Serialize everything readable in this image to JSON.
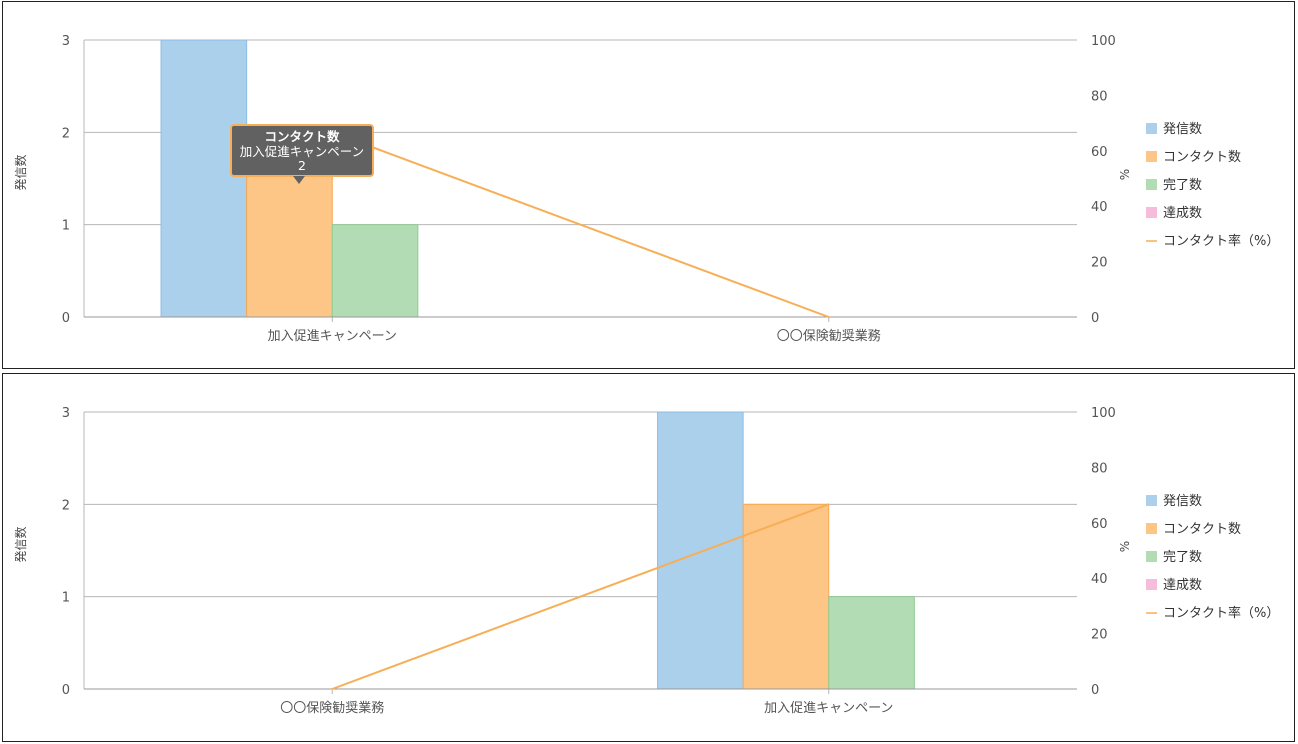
{
  "colors": {
    "sent": "#abd0ec",
    "sent_stroke": "#8dbde4",
    "contact": "#fdc586",
    "contact_stroke": "#f8a94f",
    "completed": "#b2dcb3",
    "completed_stroke": "#8fcb91",
    "achieved": "#f6bcd9",
    "achieved_stroke": "#e79ec3",
    "rate_line": "#f7ae56",
    "grid": "#b7b7b7",
    "axis_text": "#555555",
    "tooltip_bg": "#616161",
    "tooltip_border": "#f7ae56"
  },
  "chart_data": [
    {
      "type": "bar",
      "categories": [
        "加入促進キャンペーン",
        "〇〇保険勧奨業務"
      ],
      "series": [
        {
          "name": "発信数",
          "type": "bar",
          "axis": "left",
          "values": [
            3,
            0
          ]
        },
        {
          "name": "コンタクト数",
          "type": "bar",
          "axis": "left",
          "values": [
            2,
            0
          ]
        },
        {
          "name": "完了数",
          "type": "bar",
          "axis": "left",
          "values": [
            1,
            0
          ]
        },
        {
          "name": "達成数",
          "type": "bar",
          "axis": "left",
          "values": [
            0,
            0
          ]
        },
        {
          "name": "コンタクト率（%）",
          "type": "line",
          "axis": "right",
          "values": [
            66.7,
            0
          ]
        }
      ],
      "ylabel": "発信数",
      "y2label": "%",
      "ylim": [
        0,
        3
      ],
      "y2lim": [
        0,
        100
      ],
      "yticks": [
        "0",
        "1",
        "2",
        "3"
      ],
      "y2ticks": [
        "0",
        "20",
        "40",
        "60",
        "80",
        "100"
      ],
      "grid": true,
      "legend": "right",
      "tooltip": {
        "title": "コンタクト数",
        "category": "加入促進キャンペーン",
        "value": "2"
      }
    },
    {
      "type": "bar",
      "categories": [
        "〇〇保険勧奨業務",
        "加入促進キャンペーン"
      ],
      "series": [
        {
          "name": "発信数",
          "type": "bar",
          "axis": "left",
          "values": [
            0,
            3
          ]
        },
        {
          "name": "コンタクト数",
          "type": "bar",
          "axis": "left",
          "values": [
            0,
            2
          ]
        },
        {
          "name": "完了数",
          "type": "bar",
          "axis": "left",
          "values": [
            0,
            1
          ]
        },
        {
          "name": "達成数",
          "type": "bar",
          "axis": "left",
          "values": [
            0,
            0
          ]
        },
        {
          "name": "コンタクト率（%）",
          "type": "line",
          "axis": "right",
          "values": [
            0,
            66.7
          ]
        }
      ],
      "ylabel": "発信数",
      "y2label": "%",
      "ylim": [
        0,
        3
      ],
      "y2lim": [
        0,
        100
      ],
      "yticks": [
        "0",
        "1",
        "2",
        "3"
      ],
      "y2ticks": [
        "0",
        "20",
        "40",
        "60",
        "80",
        "100"
      ],
      "grid": true,
      "legend": "right"
    }
  ]
}
